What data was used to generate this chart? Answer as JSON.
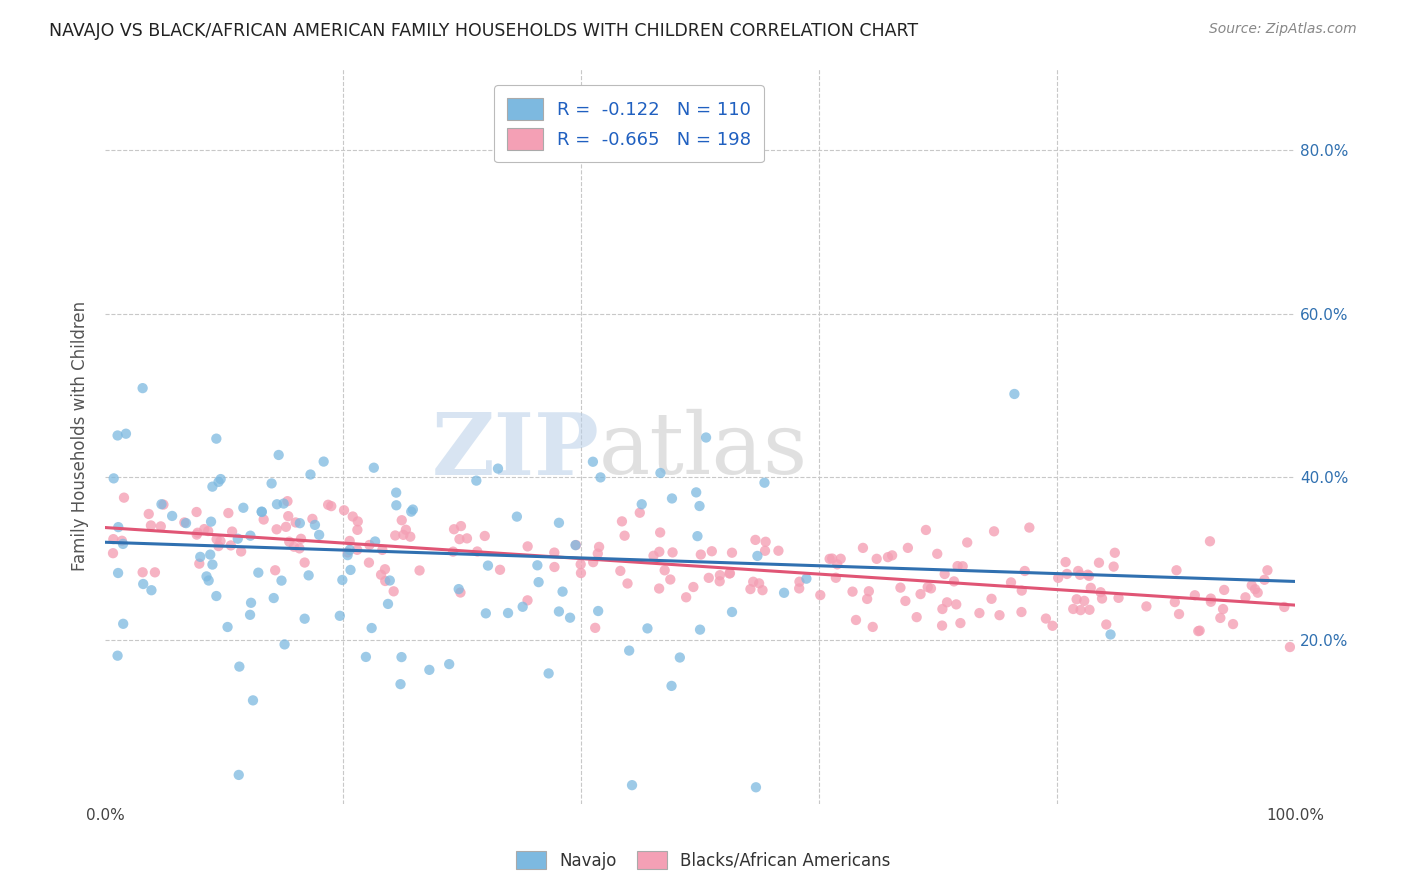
{
  "title": "NAVAJO VS BLACK/AFRICAN AMERICAN FAMILY HOUSEHOLDS WITH CHILDREN CORRELATION CHART",
  "source": "Source: ZipAtlas.com",
  "ylabel": "Family Households with Children",
  "xlim": [
    0.0,
    1.0
  ],
  "ylim": [
    0.0,
    0.9
  ],
  "navajo_R": -0.122,
  "navajo_N": 110,
  "black_R": -0.665,
  "black_N": 198,
  "navajo_color": "#7db9e0",
  "black_color": "#f4a0b5",
  "navajo_line_color": "#3070b0",
  "black_line_color": "#e05575",
  "background_color": "#ffffff",
  "grid_color": "#c8c8c8",
  "watermark_zip": "ZIP",
  "watermark_atlas": "atlas",
  "legend_label_navajo": "Navajo",
  "legend_label_black": "Blacks/African Americans",
  "nav_intercept": 0.32,
  "nav_slope": -0.048,
  "blk_intercept": 0.338,
  "blk_slope": -0.095,
  "nav_seed": 7,
  "blk_seed": 99
}
